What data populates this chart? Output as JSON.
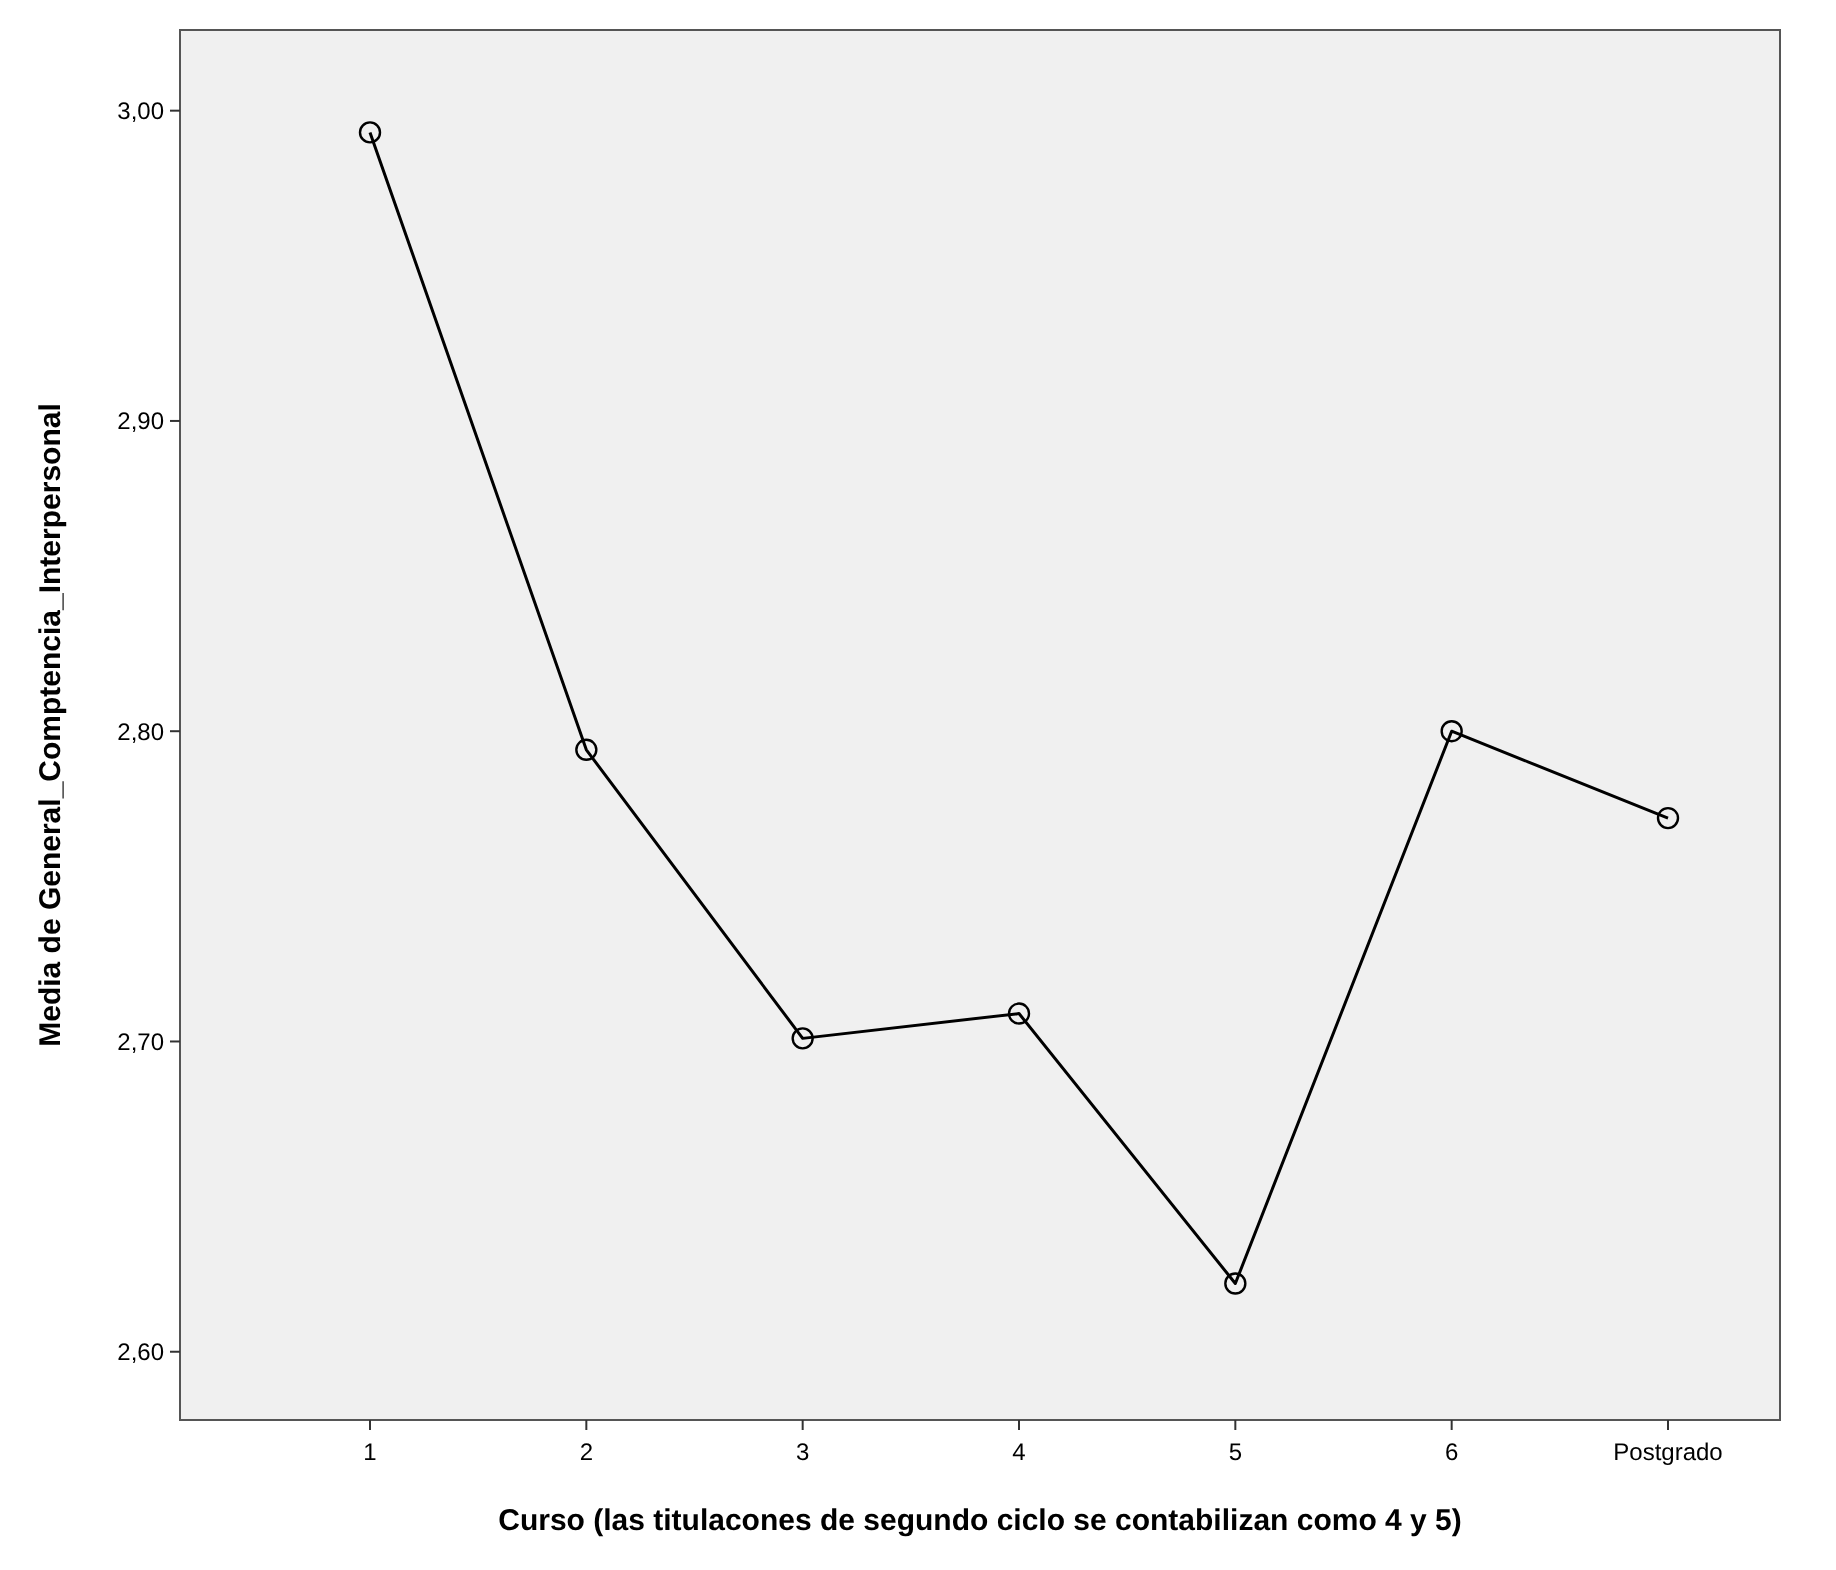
{
  "chart_data": {
    "type": "line",
    "xlabel": "Curso (las titulacones de segundo ciclo se contabilizan como 4 y 5)",
    "ylabel": "Media de General_Comptencia_Interpersonal",
    "categories": [
      "1",
      "2",
      "3",
      "4",
      "5",
      "6",
      "Postgrado"
    ],
    "series": [
      {
        "color": "#000000",
        "values": [
          2.993,
          2.794,
          2.701,
          2.709,
          2.622,
          2.8,
          2.772
        ]
      }
    ],
    "ylim": [
      2.578,
      3.026
    ],
    "yticks": [
      {
        "value": 2.6,
        "label": "2,60"
      },
      {
        "value": 2.7,
        "label": "2,70"
      },
      {
        "value": 2.8,
        "label": "2,80"
      },
      {
        "value": 2.9,
        "label": "2,90"
      },
      {
        "value": 3.0,
        "label": "3,00"
      }
    ],
    "marker": "circle"
  }
}
